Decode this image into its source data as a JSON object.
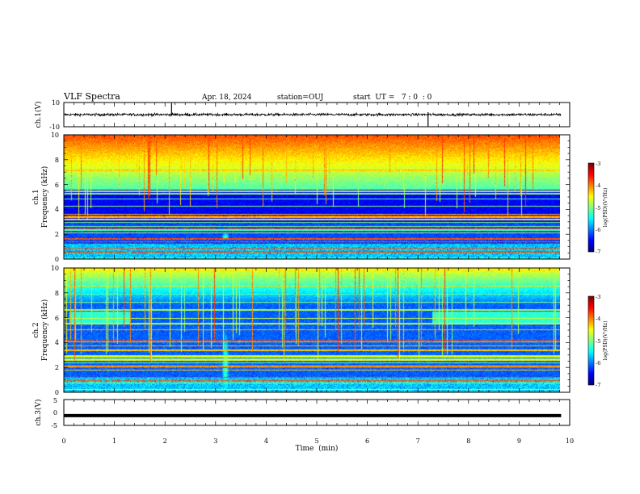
{
  "header": {
    "title": "VLF Spectra",
    "date": "Apr. 18, 2024",
    "station": "station=OUJ",
    "start_ut": "start  UT =   7 : 0  : 0"
  },
  "chart_data": [
    {
      "type": "line",
      "id": "ch1_waveform",
      "ylabel": "ch.1(V)",
      "ylim": [
        -10,
        10
      ],
      "ytick_labels": [
        "10",
        "-10"
      ],
      "x_range_min": [
        0,
        9.83
      ],
      "baseline_v": 0.0,
      "amplitude_v": 2.0,
      "spikes_min": [
        2.13,
        7.2
      ]
    },
    {
      "type": "heatmap",
      "id": "ch1_spectrogram",
      "ylabel_line1": "ch.1",
      "ylabel_line2": "Frequency (kHz)",
      "ylim": [
        0,
        10
      ],
      "ytick_labels": [
        "0",
        "2",
        "4",
        "6",
        "8",
        "10"
      ],
      "x_range_min": [
        0,
        9.83
      ],
      "colorbar": {
        "label": "log(PSD)(V²/Hz)",
        "range": [
          -7,
          -3
        ],
        "tick_labels": [
          "-3",
          "-4",
          "-5",
          "-6",
          "-7"
        ]
      },
      "features": {
        "noise_cutoff_khz": 5.6,
        "strong_lines_khz": [
          0.55,
          0.85,
          1.35,
          1.6,
          2.4,
          3.45
        ],
        "burst": {
          "time_min": 3.2,
          "freq_khz": 1.8
        }
      }
    },
    {
      "type": "heatmap",
      "id": "ch2_spectrogram",
      "ylabel_line1": "ch.2",
      "ylabel_line2": "Frequency (kHz)",
      "ylim": [
        0,
        10
      ],
      "ytick_labels": [
        "0",
        "2",
        "4",
        "6",
        "8",
        "10"
      ],
      "x_range_min": [
        0,
        9.83
      ],
      "colorbar": {
        "label": "log(PSD)(V²/Hz)",
        "range": [
          -7,
          -3
        ],
        "tick_labels": [
          "-3",
          "-4",
          "-5",
          "-6",
          "-7"
        ]
      },
      "features": {
        "band_khz": 6.0,
        "band_times_min": [
          [
            0.1,
            1.3
          ],
          [
            7.3,
            9.83
          ]
        ],
        "strong_lines_khz": [
          0.9,
          1.2,
          2.0,
          4.2
        ],
        "burst": {
          "time_min": 3.2,
          "freq_khz": 2.0
        }
      }
    },
    {
      "type": "line",
      "id": "ch3_waveform",
      "ylabel": "ch.3(V)",
      "ylim": [
        -5,
        5
      ],
      "ytick_labels": [
        "5",
        "0",
        "-5"
      ],
      "x_range_min": [
        0,
        9.83
      ],
      "baseline_v": 0.5
    }
  ],
  "xaxis": {
    "label": "Time  (min)",
    "range": [
      0,
      10
    ],
    "tick_labels": [
      "0",
      "1",
      "2",
      "3",
      "4",
      "5",
      "6",
      "7",
      "8",
      "9",
      "10"
    ]
  }
}
